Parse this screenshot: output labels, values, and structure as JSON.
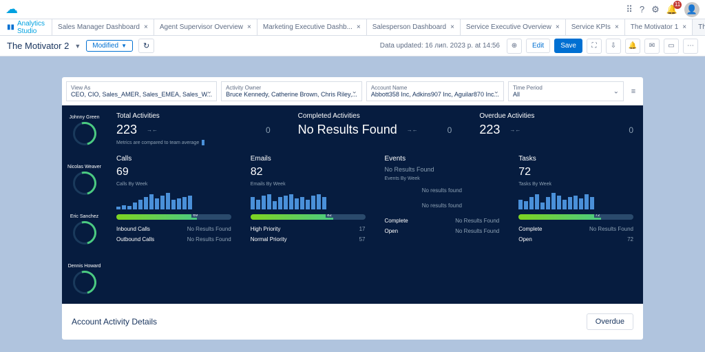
{
  "top": {
    "notif_count": "11"
  },
  "tabs": {
    "studio": "Analytics Studio",
    "items": [
      "Sales Manager Dashboard",
      "Agent Supervisor Overview",
      "Marketing Executive Dashb...",
      "Salesperson Dashboard",
      "Service Executive Overview",
      "Service KPIs",
      "The Motivator 1",
      "The Motivator 2"
    ],
    "active": 7
  },
  "edit": {
    "title": "The Motivator 2",
    "badge": "Modified",
    "updated": "Data updated: 16 лип. 2023 р. at 14:56",
    "edit": "Edit",
    "save": "Save"
  },
  "filters": [
    {
      "label": "View As",
      "value": "CEO, CIO, Sales_AMER, Sales_EMEA, Sales_W..."
    },
    {
      "label": "Activity Owner",
      "value": "Bruce Kennedy, Catherine Brown, Chris Riley,..."
    },
    {
      "label": "Account Name",
      "value": "Abbott358 Inc, Adkins907 Inc, Aguilar870 Inc..."
    },
    {
      "label": "Time Period",
      "value": "All"
    }
  ],
  "people": [
    "Johnny Green",
    "Nicolas Weaver",
    "Eric Sanchez",
    "Dennis Howard"
  ],
  "summary": [
    {
      "title": "Total Activities",
      "value": "223",
      "zero": "0"
    },
    {
      "title": "Completed Activities",
      "value": "No Results Found",
      "zero": "0"
    },
    {
      "title": "Overdue Activities",
      "value": "223",
      "zero": "0"
    }
  ],
  "note": "Metrics are compared to team average",
  "cards": {
    "calls": {
      "title": "Calls",
      "value": "69",
      "sub": "Calls By Week",
      "bars": [
        4,
        6,
        5,
        10,
        14,
        18,
        22,
        16,
        20,
        24,
        14,
        16,
        18,
        20
      ],
      "gauge": 70,
      "gauge_label": "69",
      "stats": [
        {
          "l": "Inbound Calls",
          "r": "No Results Found"
        },
        {
          "l": "Outbound Calls",
          "r": "No Results Found"
        }
      ]
    },
    "emails": {
      "title": "Emails",
      "value": "82",
      "sub": "Emails By Week",
      "bars": [
        18,
        14,
        20,
        22,
        12,
        18,
        20,
        22,
        16,
        18,
        14,
        20,
        22,
        18
      ],
      "gauge": 72,
      "gauge_label": "82",
      "stats": [
        {
          "l": "High Priority",
          "r": "17"
        },
        {
          "l": "Normal Priority",
          "r": "57"
        }
      ]
    },
    "events": {
      "title": "Events",
      "value": "No Results Found",
      "sub": "Events By Week",
      "nr": "No results found",
      "nr2": "No results found",
      "stats": [
        {
          "l": "Complete",
          "r": "No Results Found"
        },
        {
          "l": "Open",
          "r": "No Results Found"
        }
      ]
    },
    "tasks": {
      "title": "Tasks",
      "value": "72",
      "sub": "Tasks By Week",
      "bars": [
        14,
        12,
        18,
        22,
        10,
        18,
        24,
        20,
        14,
        18,
        20,
        16,
        22,
        18
      ],
      "gauge": 72,
      "gauge_label": "72",
      "stats": [
        {
          "l": "Complete",
          "r": "No Results Found"
        },
        {
          "l": "Open",
          "r": "72"
        }
      ]
    }
  },
  "footer": {
    "title": "Account Activity Details",
    "button": "Overdue"
  }
}
